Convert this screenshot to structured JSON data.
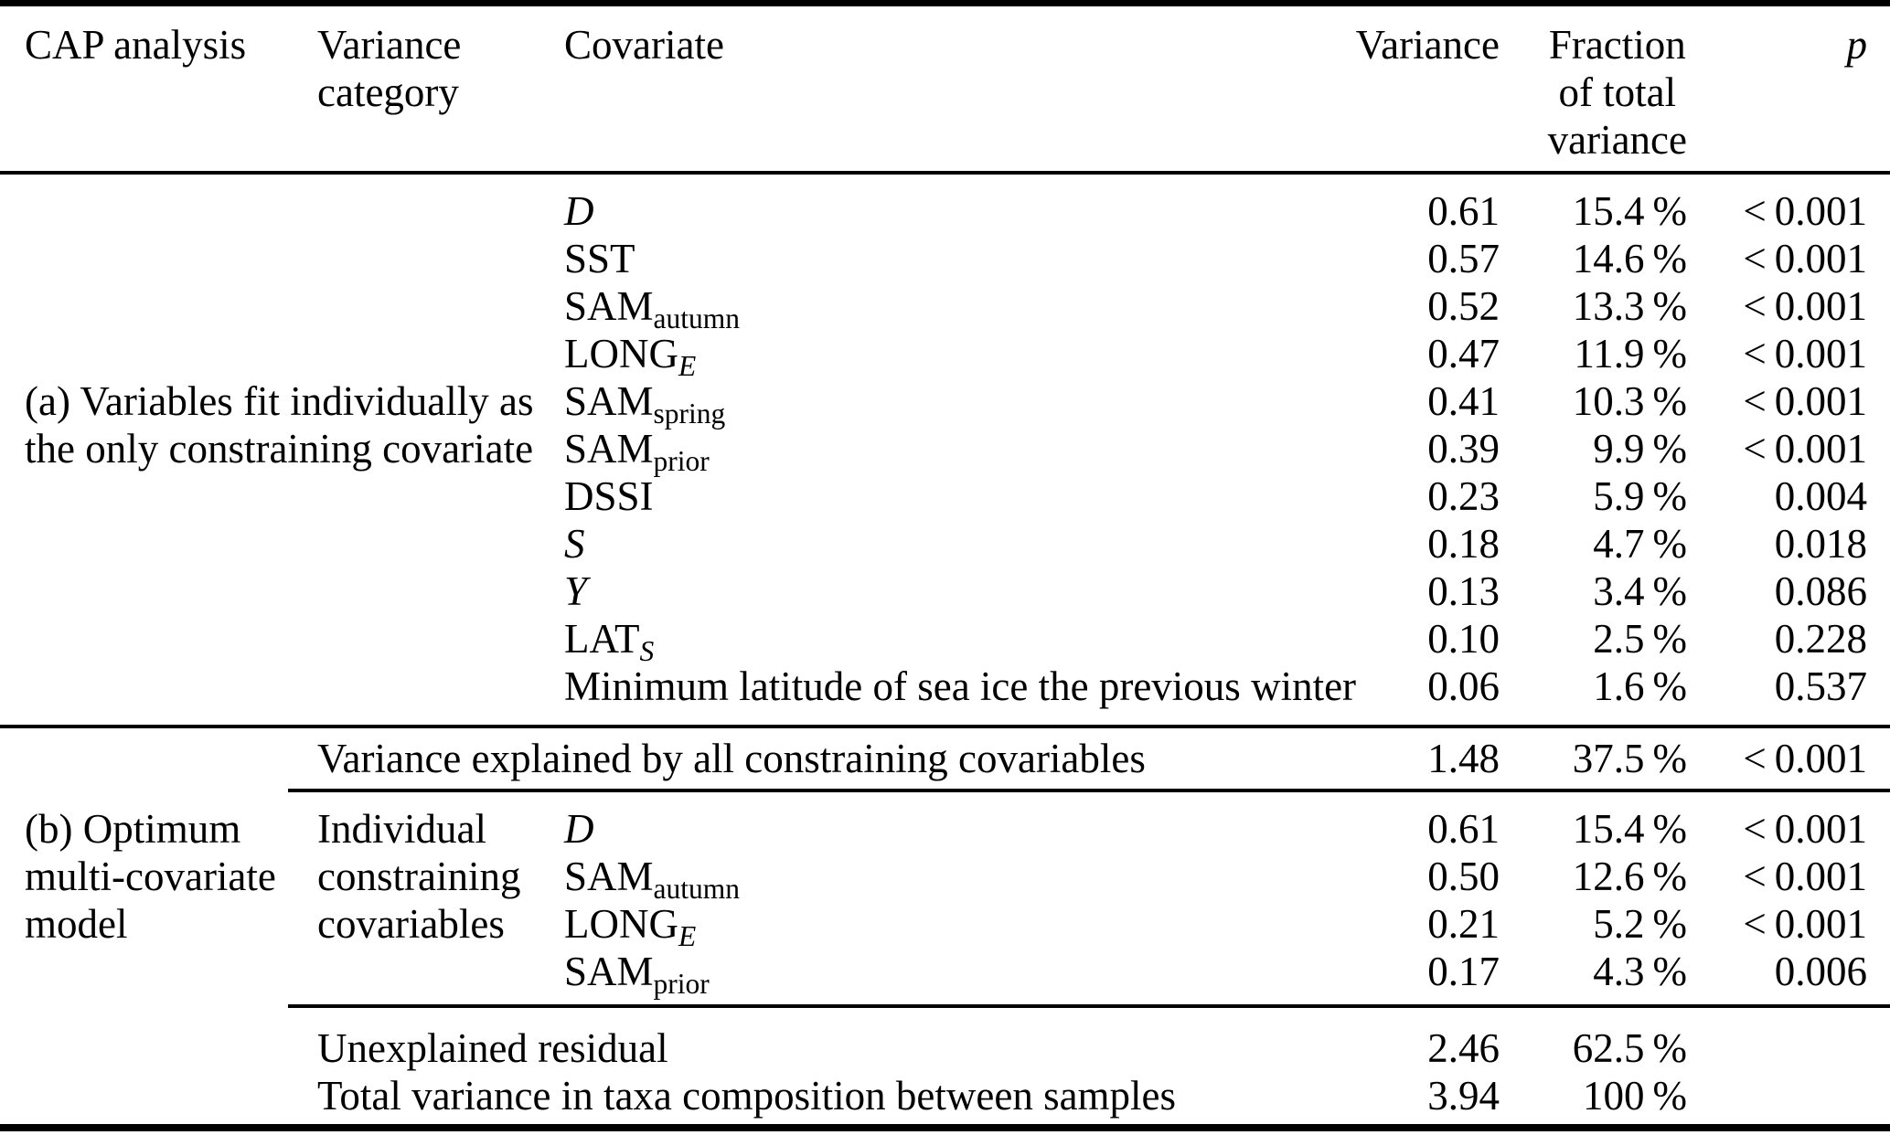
{
  "colors": {
    "text": "#000000",
    "background": "#ffffff",
    "rule": "#000000"
  },
  "header": {
    "cap_analysis": "CAP analysis",
    "variance_category_lines": [
      "Variance",
      "category"
    ],
    "covariate": "Covariate",
    "variance": "Variance",
    "fraction_lines": [
      "Fraction",
      "of total",
      "variance"
    ],
    "p": "p"
  },
  "section_a": {
    "label_lines": [
      "(a) Variables fit individually as",
      "the only constraining covariate"
    ],
    "rows": [
      {
        "covariate": [
          {
            "t": "D",
            "i": true
          }
        ],
        "variance": "0.61",
        "fraction": "15.4 %",
        "p": "< 0.001"
      },
      {
        "covariate": [
          {
            "t": "SST"
          }
        ],
        "variance": "0.57",
        "fraction": "14.6 %",
        "p": "< 0.001"
      },
      {
        "covariate": [
          {
            "t": "SAM"
          },
          {
            "t": "autumn",
            "sub": true
          }
        ],
        "variance": "0.52",
        "fraction": "13.3 %",
        "p": "< 0.001"
      },
      {
        "covariate": [
          {
            "t": "LONG"
          },
          {
            "t": "E",
            "sub": true,
            "i": true
          }
        ],
        "variance": "0.47",
        "fraction": "11.9 %",
        "p": "< 0.001"
      },
      {
        "covariate": [
          {
            "t": "SAM"
          },
          {
            "t": "spring",
            "sub": true
          }
        ],
        "variance": "0.41",
        "fraction": "10.3 %",
        "p": "< 0.001"
      },
      {
        "covariate": [
          {
            "t": "SAM"
          },
          {
            "t": "prior",
            "sub": true
          }
        ],
        "variance": "0.39",
        "fraction": "9.9 %",
        "p": "< 0.001"
      },
      {
        "covariate": [
          {
            "t": "DSSI"
          }
        ],
        "variance": "0.23",
        "fraction": "5.9 %",
        "p": "0.004"
      },
      {
        "covariate": [
          {
            "t": "S",
            "i": true
          }
        ],
        "variance": "0.18",
        "fraction": "4.7 %",
        "p": "0.018"
      },
      {
        "covariate": [
          {
            "t": "Y",
            "i": true
          }
        ],
        "variance": "0.13",
        "fraction": "3.4 %",
        "p": "0.086"
      },
      {
        "covariate": [
          {
            "t": "LAT"
          },
          {
            "t": "S",
            "sub": true,
            "i": true
          }
        ],
        "variance": "0.10",
        "fraction": "2.5 %",
        "p": "0.228"
      },
      {
        "covariate": [
          {
            "t": "Minimum latitude of sea ice the previous winter"
          }
        ],
        "variance": "0.06",
        "fraction": "1.6 %",
        "p": "0.537"
      }
    ]
  },
  "summary_row": {
    "label": "Variance explained by all constraining covariables",
    "variance": "1.48",
    "fraction": "37.5 %",
    "p": "< 0.001"
  },
  "section_b": {
    "label_lines": [
      "(b) Optimum",
      "multi-covariate",
      "model"
    ],
    "category_lines": [
      "Individual",
      "constraining",
      "covariables"
    ],
    "rows": [
      {
        "covariate": [
          {
            "t": "D",
            "i": true
          }
        ],
        "variance": "0.61",
        "fraction": "15.4 %",
        "p": "< 0.001"
      },
      {
        "covariate": [
          {
            "t": "SAM"
          },
          {
            "t": "autumn",
            "sub": true
          }
        ],
        "variance": "0.50",
        "fraction": "12.6 %",
        "p": "< 0.001"
      },
      {
        "covariate": [
          {
            "t": "LONG"
          },
          {
            "t": "E",
            "sub": true,
            "i": true
          }
        ],
        "variance": "0.21",
        "fraction": "5.2 %",
        "p": "< 0.001"
      },
      {
        "covariate": [
          {
            "t": "SAM"
          },
          {
            "t": "prior",
            "sub": true
          }
        ],
        "variance": "0.17",
        "fraction": "4.3 %",
        "p": "0.006"
      }
    ]
  },
  "footer_rows": [
    {
      "label": "Unexplained residual",
      "variance": "2.46",
      "fraction": "62.5 %",
      "p": ""
    },
    {
      "label": "Total variance in taxa composition between samples",
      "variance": "3.94",
      "fraction": "100 %",
      "p": ""
    }
  ]
}
